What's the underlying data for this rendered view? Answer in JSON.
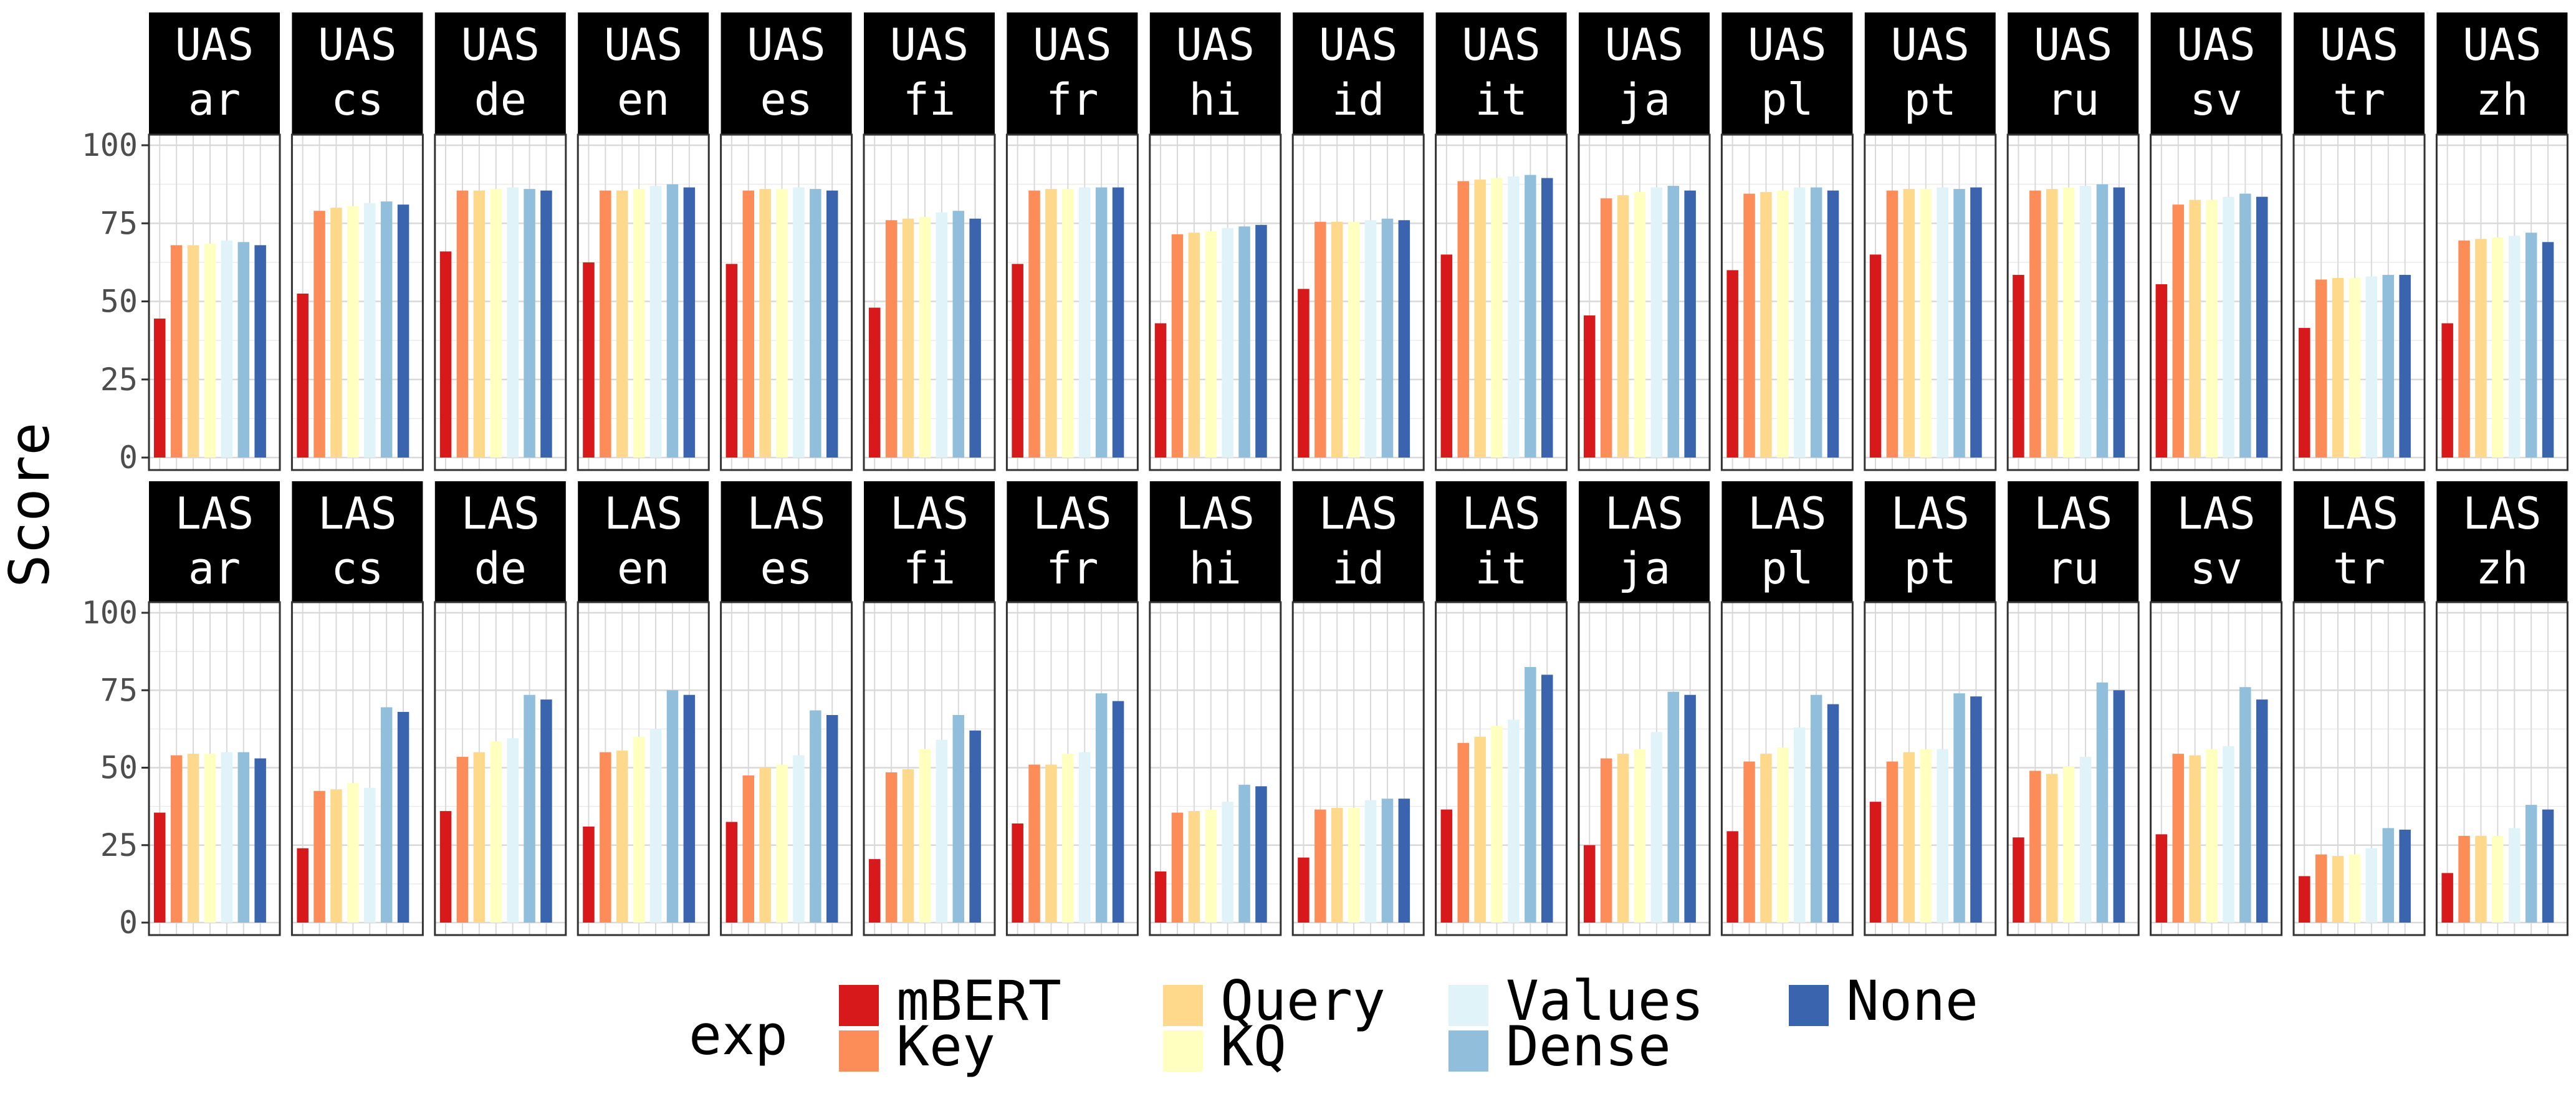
{
  "chart_data": {
    "type": "bar",
    "ylabel": "Score",
    "ylim": [
      0,
      100
    ],
    "yticks": [
      0,
      25,
      50,
      75,
      100
    ],
    "grid": true,
    "legend": {
      "title": "exp",
      "position": "bottom",
      "entries": [
        "mBERT",
        "Key",
        "Query",
        "KQ",
        "Values",
        "Dense",
        "None"
      ]
    },
    "colors": {
      "mBERT": "#d7191c",
      "Key": "#fc8d59",
      "Query": "#fed98b",
      "KQ": "#ffffbf",
      "Values": "#e0f3f8",
      "Dense": "#91bfdb",
      "None": "#3a64ad"
    },
    "metrics": [
      "UAS",
      "LAS"
    ],
    "languages": [
      "ar",
      "cs",
      "de",
      "en",
      "es",
      "fi",
      "fr",
      "hi",
      "id",
      "it",
      "ja",
      "pl",
      "pt",
      "ru",
      "sv",
      "tr",
      "zh"
    ],
    "values": {
      "UAS": {
        "ar": [
          44.5,
          68,
          68,
          68.5,
          69.5,
          69,
          68
        ],
        "cs": [
          52.5,
          79,
          80,
          80.5,
          81.5,
          82,
          81
        ],
        "de": [
          66,
          85.5,
          85.5,
          86,
          86.5,
          86,
          85.5
        ],
        "en": [
          62.5,
          85.5,
          85.5,
          86,
          87,
          87.5,
          86.5
        ],
        "es": [
          62,
          85.5,
          86,
          86,
          86.5,
          86,
          85.5
        ],
        "fi": [
          48,
          76,
          76.5,
          77,
          78.5,
          79,
          76.5
        ],
        "fr": [
          62,
          85.5,
          86,
          86,
          86.5,
          86.5,
          86.5
        ],
        "hi": [
          43,
          71.5,
          72,
          72.5,
          73.5,
          74,
          74.5
        ],
        "id": [
          54,
          75.5,
          75.5,
          75.5,
          76,
          76.5,
          76
        ],
        "it": [
          65,
          88.5,
          89,
          89.5,
          90,
          90.5,
          89.5
        ],
        "ja": [
          45.5,
          83,
          84,
          85,
          86.5,
          87,
          85.5
        ],
        "pl": [
          60,
          84.5,
          85,
          85.5,
          86.5,
          86.5,
          85.5
        ],
        "pt": [
          65,
          85.5,
          86,
          86,
          86.5,
          86,
          86.5
        ],
        "ru": [
          58.5,
          85.5,
          86,
          86.5,
          87,
          87.5,
          86.5
        ],
        "sv": [
          55.5,
          81,
          82.5,
          82.5,
          83.5,
          84.5,
          83.5
        ],
        "tr": [
          41.5,
          57,
          57.5,
          57.5,
          58,
          58.5,
          58.5
        ],
        "zh": [
          43,
          69.5,
          70,
          70.5,
          71,
          72,
          69
        ]
      },
      "LAS": {
        "ar": [
          35.5,
          54,
          54.5,
          54.5,
          55,
          55,
          53
        ],
        "cs": [
          24,
          42.5,
          43,
          45,
          43.5,
          69.5,
          68
        ],
        "de": [
          36,
          53.5,
          55,
          58.5,
          59.5,
          73.5,
          72
        ],
        "en": [
          31,
          55,
          55.5,
          60,
          62.5,
          75,
          73.5
        ],
        "es": [
          32.5,
          47.5,
          50,
          51,
          54,
          68.5,
          67
        ],
        "fi": [
          20.5,
          48.5,
          49.5,
          56,
          59,
          67,
          62
        ],
        "fr": [
          32,
          51,
          51,
          54.5,
          55,
          74,
          71.5
        ],
        "hi": [
          16.5,
          35.5,
          36,
          36.5,
          39,
          44.5,
          44
        ],
        "id": [
          21,
          36.5,
          37,
          37,
          39.5,
          40,
          40
        ],
        "it": [
          36.5,
          58,
          60,
          63.5,
          65.5,
          82.5,
          80
        ],
        "ja": [
          25,
          53,
          54.5,
          56,
          61.5,
          74.5,
          73.5
        ],
        "pl": [
          29.5,
          52,
          54.5,
          56.5,
          63,
          73.5,
          70.5
        ],
        "pt": [
          39,
          52,
          55,
          56,
          56,
          74,
          73
        ],
        "ru": [
          27.5,
          49,
          48,
          50.5,
          53.5,
          77.5,
          75
        ],
        "sv": [
          28.5,
          54.5,
          54,
          56,
          57,
          76,
          72
        ],
        "tr": [
          15,
          22,
          21.5,
          22,
          24,
          30.5,
          30
        ],
        "zh": [
          16,
          28,
          28,
          28,
          30.5,
          38,
          36.5
        ]
      }
    }
  }
}
